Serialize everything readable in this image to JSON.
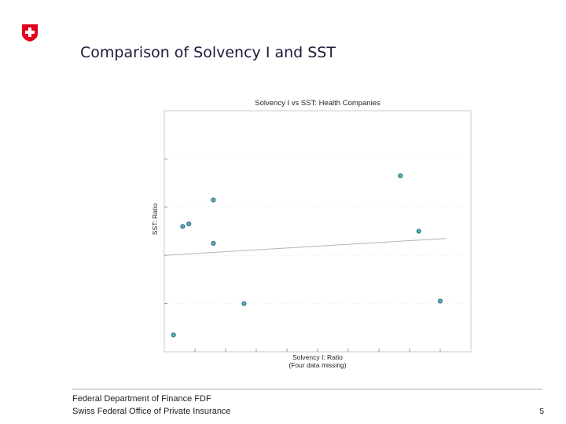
{
  "slide": {
    "title": "Comparison of Solvency I and SST",
    "footer_line1": "Federal Department of Finance FDF",
    "footer_line2": "Swiss Federal Office of Private Insurance",
    "page_number": "5"
  },
  "colors": {
    "swiss_red": "#e3001b",
    "point_fill": "#4fb3c6",
    "point_stroke": "#1b4f5c",
    "trend_line": "#b4b4b4",
    "frame": "#c8c8c8",
    "grid": "#d7d7d7"
  },
  "chart_data": {
    "type": "scatter",
    "title": "Solvency I vs SST: Health Companies",
    "xlabel": "Solvency I: Ratio",
    "xlabel_note": "(Four data missing)",
    "ylabel": "SST: Ratio",
    "xlim": [
      0,
      100
    ],
    "ylim": [
      0,
      100
    ],
    "grid": true,
    "points": [
      {
        "x": 3,
        "y": 7
      },
      {
        "x": 6,
        "y": 52
      },
      {
        "x": 8,
        "y": 53
      },
      {
        "x": 16,
        "y": 63
      },
      {
        "x": 16,
        "y": 45
      },
      {
        "x": 26,
        "y": 20
      },
      {
        "x": 77,
        "y": 73
      },
      {
        "x": 83,
        "y": 50
      },
      {
        "x": 90,
        "y": 21
      }
    ],
    "trend_line": [
      {
        "x": 0,
        "y": 40
      },
      {
        "x": 92,
        "y": 47
      }
    ]
  }
}
